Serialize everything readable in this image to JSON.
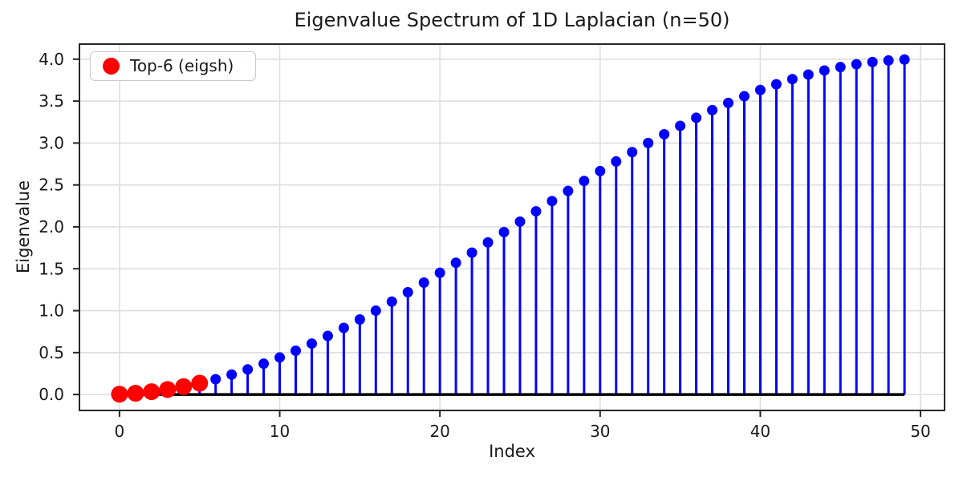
{
  "chart_data": {
    "type": "stem",
    "title": "Eigenvalue Spectrum of 1D Laplacian (n=50)",
    "xlabel": "Index",
    "ylabel": "Eigenvalue",
    "x": [
      0,
      1,
      2,
      3,
      4,
      5,
      6,
      7,
      8,
      9,
      10,
      11,
      12,
      13,
      14,
      15,
      16,
      17,
      18,
      19,
      20,
      21,
      22,
      23,
      24,
      25,
      26,
      27,
      28,
      29,
      30,
      31,
      32,
      33,
      34,
      35,
      36,
      37,
      38,
      39,
      40,
      41,
      42,
      43,
      44,
      45,
      46,
      47,
      48,
      49
    ],
    "values": [
      0.0038,
      0.0152,
      0.0341,
      0.0604,
      0.0941,
      0.1351,
      0.1831,
      0.238,
      0.2996,
      0.3677,
      0.4419,
      0.5221,
      0.6078,
      0.6989,
      0.7948,
      0.8954,
      1.0,
      1.1084,
      1.2202,
      1.3349,
      1.4522,
      1.5715,
      1.6925,
      1.8146,
      1.9375,
      2.0625,
      2.1854,
      2.3075,
      2.4285,
      2.5478,
      2.6651,
      2.7798,
      2.8916,
      3.0,
      3.1046,
      3.2052,
      3.3011,
      3.3922,
      3.4779,
      3.5581,
      3.6323,
      3.7004,
      3.762,
      3.8169,
      3.8649,
      3.9059,
      3.9396,
      3.9659,
      3.9848,
      3.9962
    ],
    "highlight": {
      "count": 6,
      "color": "#ff0000"
    },
    "legend": {
      "position": "upper left",
      "entries": [
        {
          "label": "Top-6 (eigsh)",
          "marker": "circle",
          "color": "#ff0000"
        }
      ]
    },
    "style": {
      "stem_color": "#0000ff",
      "marker_color": "#0000ff",
      "baseline_color": "#000000",
      "grid_color": "#dedede",
      "spine_color": "#262626",
      "text_color": "#1a1a1a",
      "background": "#ffffff"
    },
    "xlim": [
      -2.5,
      51.5
    ],
    "ylim": [
      -0.19,
      4.18
    ],
    "xticks": [
      0,
      10,
      20,
      30,
      40,
      50
    ],
    "xtick_labels": [
      "0",
      "10",
      "20",
      "30",
      "40",
      "50"
    ],
    "yticks": [
      0.0,
      0.5,
      1.0,
      1.5,
      2.0,
      2.5,
      3.0,
      3.5,
      4.0
    ],
    "ytick_labels": [
      "0.0",
      "0.5",
      "1.0",
      "1.5",
      "2.0",
      "2.5",
      "3.0",
      "3.5",
      "4.0"
    ],
    "grid": true
  }
}
